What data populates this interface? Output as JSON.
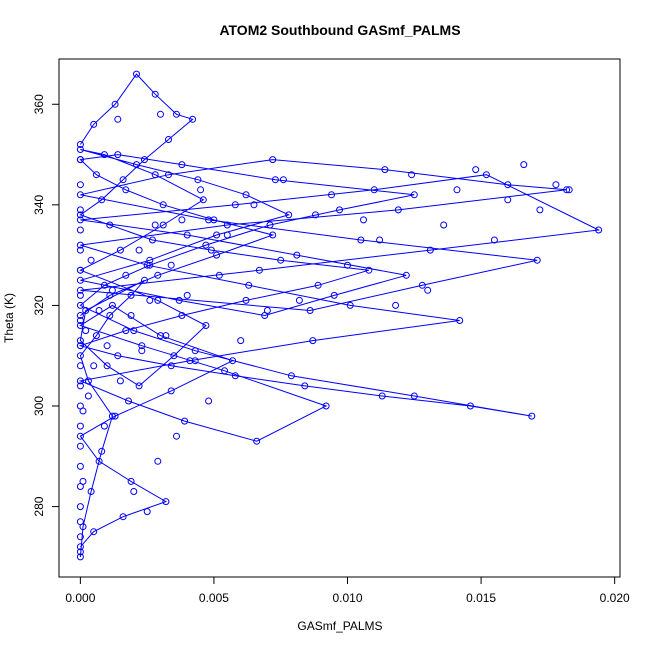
{
  "chart_data": {
    "type": "scatter",
    "title": "ATOM2 Southbound GASmf_PALMS",
    "xlabel": "GASmf_PALMS",
    "ylabel": "Theta (K)",
    "xlim": [
      -0.0008,
      0.0202
    ],
    "ylim": [
      266,
      369
    ],
    "x_ticks": [
      0.0,
      0.005,
      0.01,
      0.015,
      0.02
    ],
    "x_tick_labels": [
      "0.000",
      "0.005",
      "0.010",
      "0.015",
      "0.020"
    ],
    "y_ticks": [
      280,
      300,
      320,
      340,
      360
    ],
    "y_tick_labels": [
      "280",
      "300",
      "320",
      "340",
      "360"
    ],
    "grid": false,
    "legend": "none",
    "colors": {
      "series": "#0000ff",
      "frame": "#000000"
    },
    "marker": "open-circle",
    "series": [
      {
        "style": "line+points",
        "x": [
          0.0,
          0.0001,
          0.0004,
          0.0008,
          0.0012,
          0.0003,
          0.0,
          0.0006,
          0.0011,
          0.0019,
          0.0024,
          0.0002,
          0.0,
          0.001,
          0.0022,
          0.0035,
          0.0047,
          0.0029,
          0.0,
          0.0015,
          0.0031,
          0.0046,
          0.0028,
          0.0009,
          0.0,
          0.0021,
          0.0044,
          0.0062,
          0.0078,
          0.0051,
          0.0026,
          0.0,
          0.0037,
          0.0069,
          0.0095,
          0.0122,
          0.0081,
          0.004,
          0.0,
          0.0058,
          0.011,
          0.0152,
          0.0194,
          0.0131,
          0.0067,
          0.0,
          0.0086,
          0.0128,
          0.0171,
          0.0105,
          0.0048,
          0.0,
          0.0033,
          0.0072,
          0.0114,
          0.016,
          0.0182,
          0.0119,
          0.0055,
          0.0,
          0.0025,
          0.0063,
          0.0101,
          0.0142,
          0.0087,
          0.0041,
          0.0,
          0.0018,
          0.0039,
          0.0066,
          0.0092,
          0.0054,
          0.0023,
          0.0,
          0.0012,
          0.003,
          0.0057,
          0.0034,
          0.0013,
          0.0,
          0.0007,
          0.0019,
          0.0032,
          0.0016,
          0.0005,
          0.0
        ],
        "y": [
          270.0,
          276.0,
          283.0,
          291.0,
          298.0,
          305.0,
          310.0,
          314.0,
          318.0,
          322.0,
          325.0,
          319.0,
          313.0,
          308.0,
          304.0,
          310.0,
          316.0,
          321.0,
          327.0,
          331.0,
          336.0,
          341.0,
          346.0,
          350.0,
          351.0,
          348.0,
          345.0,
          342.0,
          338.0,
          334.0,
          329.0,
          325.0,
          321.0,
          318.0,
          322.0,
          326.0,
          330.0,
          334.0,
          337.0,
          340.0,
          343.0,
          346.0,
          335.0,
          331.0,
          327.0,
          323.0,
          319.0,
          324.0,
          329.0,
          333.0,
          337.0,
          342.0,
          346.0,
          349.0,
          347.0,
          344.0,
          343.0,
          339.0,
          336.0,
          332.0,
          328.0,
          324.0,
          320.0,
          317.0,
          313.0,
          309.0,
          305.0,
          301.0,
          297.0,
          293.0,
          300.0,
          307.0,
          312.0,
          316.0,
          320.0,
          314.0,
          309.0,
          303.0,
          298.0,
          294.0,
          289.0,
          285.0,
          281.0,
          278.0,
          275.0,
          272.0
        ]
      },
      {
        "style": "line+points",
        "x": [
          0.0,
          0.0005,
          0.0013,
          0.0021,
          0.0028,
          0.0036,
          0.0042,
          0.0033,
          0.0024,
          0.0016,
          0.0008,
          0.0,
          0.0011,
          0.0027,
          0.0049,
          0.0075,
          0.0108,
          0.0089,
          0.0062,
          0.0038,
          0.0017,
          0.0,
          0.0014,
          0.0034,
          0.0058,
          0.0084,
          0.0113,
          0.0146,
          0.0169,
          0.0125,
          0.0079,
          0.0043,
          0.002,
          0.0,
          0.0009,
          0.0026,
          0.0047,
          0.0071,
          0.0097,
          0.0125,
          0.0073,
          0.0038,
          0.0014,
          0.0,
          0.0006,
          0.0017,
          0.0031,
          0.005,
          0.0072,
          0.0051,
          0.0029,
          0.0011,
          0.0
        ],
        "y": [
          352.0,
          356.0,
          360.0,
          366.0,
          362.0,
          358.0,
          357.0,
          353.0,
          349.0,
          345.0,
          341.0,
          338.0,
          336.0,
          333.0,
          331.0,
          329.0,
          327.0,
          324.0,
          321.0,
          318.0,
          315.0,
          312.0,
          310.0,
          308.0,
          306.0,
          304.0,
          302.0,
          300.0,
          298.0,
          302.0,
          306.0,
          311.0,
          315.0,
          320.0,
          324.0,
          328.0,
          332.0,
          336.0,
          339.0,
          342.0,
          345.0,
          348.0,
          350.0,
          349.0,
          346.0,
          343.0,
          340.0,
          337.0,
          334.0,
          330.0,
          326.0,
          322.0,
          318.0
        ]
      },
      {
        "style": "points",
        "x": [
          0.0,
          0.0,
          0.0,
          0.0,
          0.0,
          0.0,
          0.0,
          0.0,
          0.0,
          0.0,
          0.0,
          0.0,
          0.0,
          0.0,
          0.0,
          0.0,
          0.0,
          0.0,
          0.0,
          0.0,
          0.0001,
          0.0001,
          0.0002,
          0.0003,
          0.0004,
          0.0005,
          0.0007,
          0.0009,
          0.001,
          0.0012,
          0.0014,
          0.0015,
          0.0017,
          0.0019,
          0.002,
          0.0022,
          0.0023,
          0.0025,
          0.0026,
          0.0028,
          0.0029,
          0.003,
          0.0032,
          0.0034,
          0.0036,
          0.0038,
          0.004,
          0.0043,
          0.0045,
          0.0048,
          0.0052,
          0.0055,
          0.006,
          0.0065,
          0.007,
          0.0076,
          0.0082,
          0.0088,
          0.0094,
          0.01,
          0.0106,
          0.0112,
          0.0118,
          0.0124,
          0.013,
          0.0136,
          0.0141,
          0.0148,
          0.0155,
          0.016,
          0.0166,
          0.0172,
          0.0178,
          0.0183
        ],
        "y": [
          271.0,
          274.0,
          277.0,
          280.0,
          284.0,
          288.0,
          292.0,
          296.0,
          300.0,
          304.0,
          308.0,
          312.0,
          317.0,
          322.0,
          327.0,
          331.0,
          335.0,
          339.0,
          344.0,
          349.0,
          285.0,
          299.0,
          315.0,
          302.0,
          329.0,
          308.0,
          319.0,
          296.0,
          312.0,
          323.0,
          357.0,
          305.0,
          326.0,
          318.0,
          283.0,
          331.0,
          311.0,
          279.0,
          321.0,
          336.0,
          289.0,
          358.0,
          314.0,
          328.0,
          294.0,
          337.0,
          322.0,
          309.0,
          343.0,
          301.0,
          326.0,
          334.0,
          313.0,
          340.0,
          319.0,
          345.0,
          321.0,
          338.0,
          342.0,
          328.0,
          337.0,
          333.0,
          320.0,
          346.0,
          323.0,
          336.0,
          343.0,
          347.0,
          333.0,
          341.0,
          348.0,
          339.0,
          344.0,
          343.0
        ]
      }
    ]
  }
}
